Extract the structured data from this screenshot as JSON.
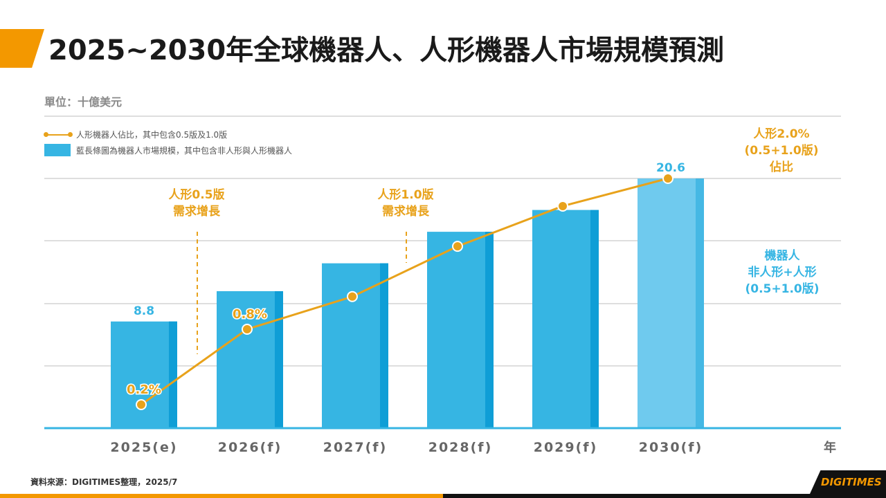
{
  "title": "2025~2030年全球機器人、人形機器人市場規模預測",
  "unit_label": "單位：十億美元",
  "legend": {
    "line_label": "人形機器人佔比，其中包含0.5版及1.0版",
    "bar_label": "藍長條圖為機器人市場規模，其中包含非人形與人形機器人"
  },
  "annotations": {
    "v05_line1": "人形0.5版",
    "v05_line2": "需求增長",
    "v10_line1": "人形1.0版",
    "v10_line2": "需求增長",
    "right_orange_line1": "人形2.0%",
    "right_orange_line2": "(0.5+1.0版)",
    "right_orange_line3": "佔比",
    "right_blue_line1": "機器人",
    "right_blue_line2": "非人形+人形",
    "right_blue_line3": "(0.5+1.0版)"
  },
  "source": "資料來源：DIGITIMES整理，2025/7",
  "logo": "DIGITIMES",
  "colors": {
    "bar": "#36b5e3",
    "bar_dark": "#0f9ed6",
    "bar_light_last": "#6fcaee",
    "line": "#e8a21b",
    "accent": "#f39800",
    "axis_label": "#666666"
  },
  "chart_data": {
    "type": "bar",
    "categories": [
      "2025(e)",
      "2026(f)",
      "2027(f)",
      "2028(f)",
      "2029(f)",
      "2030(f)"
    ],
    "x_axis_unit": "年",
    "bar_series": {
      "values": [
        8.8,
        11.3,
        13.6,
        16.2,
        18.0,
        20.6
      ],
      "data_labels": [
        "8.8",
        "",
        "",
        "",
        "",
        "20.6"
      ]
    },
    "line_series": {
      "values": [
        0.2,
        0.8,
        1.06,
        1.46,
        1.78,
        2.0
      ],
      "data_labels": [
        "0.2%",
        "0.8%",
        "",
        "",
        "",
        ""
      ]
    },
    "y_bar_range": [
      0,
      22
    ],
    "grid": true
  }
}
